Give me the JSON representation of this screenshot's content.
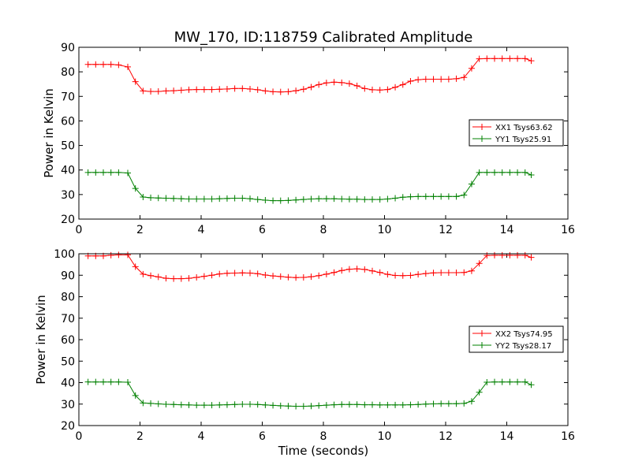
{
  "figure": {
    "title": "MW_170, ID:118759 Calibrated Amplitude"
  },
  "colors": {
    "XX": "#ff0000",
    "YY": "#008000"
  },
  "chart_data": [
    {
      "type": "line",
      "xlabel": "",
      "ylabel": "Power in Kelvin",
      "xlim": [
        0,
        16
      ],
      "ylim": [
        20,
        90
      ],
      "xticks": [
        "0",
        "2",
        "4",
        "6",
        "8",
        "10",
        "12",
        "14",
        "16"
      ],
      "yticks": [
        "20",
        "30",
        "40",
        "50",
        "60",
        "70",
        "80",
        "90"
      ],
      "grid": false,
      "legend_position": "right",
      "x": [
        0.3,
        0.55,
        0.8,
        1.05,
        1.3,
        1.6,
        1.85,
        2.1,
        2.35,
        2.6,
        2.85,
        3.1,
        3.35,
        3.6,
        3.85,
        4.1,
        4.35,
        4.6,
        4.85,
        5.1,
        5.35,
        5.6,
        5.85,
        6.1,
        6.35,
        6.6,
        6.85,
        7.1,
        7.35,
        7.6,
        7.85,
        8.1,
        8.35,
        8.6,
        8.85,
        9.1,
        9.35,
        9.6,
        9.85,
        10.1,
        10.35,
        10.6,
        10.85,
        11.1,
        11.35,
        11.6,
        11.85,
        12.1,
        12.35,
        12.6,
        12.85,
        13.1,
        13.35,
        13.6,
        13.85,
        14.1,
        14.35,
        14.6,
        14.8
      ],
      "series": [
        {
          "name": "XX1 Tsys63.62",
          "color": "#ff0000",
          "values": [
            83,
            83,
            83,
            83,
            82.8,
            82,
            76,
            72.2,
            72,
            72,
            72.2,
            72.3,
            72.5,
            72.7,
            72.8,
            72.8,
            72.8,
            72.9,
            73,
            73.2,
            73.2,
            73,
            72.7,
            72.2,
            71.9,
            71.8,
            71.9,
            72.3,
            72.9,
            73.8,
            74.8,
            75.5,
            75.8,
            75.6,
            75.2,
            74.3,
            73.2,
            72.7,
            72.6,
            72.8,
            73.7,
            74.8,
            76.2,
            76.8,
            77,
            77,
            77,
            77,
            77.2,
            77.7,
            81.4,
            85.3,
            85.4,
            85.4,
            85.4,
            85.4,
            85.4,
            85.4,
            84.5
          ]
        },
        {
          "name": "YY1 Tsys25.91",
          "color": "#008000",
          "values": [
            39,
            39,
            39,
            39,
            39,
            38.8,
            32.5,
            29,
            28.7,
            28.6,
            28.5,
            28.4,
            28.3,
            28.2,
            28.2,
            28.2,
            28.2,
            28.3,
            28.4,
            28.5,
            28.5,
            28.3,
            28,
            27.7,
            27.5,
            27.5,
            27.6,
            27.8,
            28,
            28.2,
            28.3,
            28.3,
            28.3,
            28.2,
            28.1,
            28.1,
            28,
            28,
            28,
            28.2,
            28.5,
            28.9,
            29.1,
            29.2,
            29.2,
            29.2,
            29.2,
            29.2,
            29.2,
            29.8,
            34.3,
            39,
            39,
            39,
            39,
            39,
            39,
            39,
            38
          ]
        }
      ]
    },
    {
      "type": "line",
      "xlabel": "Time (seconds)",
      "ylabel": "Power in Kelvin",
      "xlim": [
        0,
        16
      ],
      "ylim": [
        20,
        100
      ],
      "xticks": [
        "0",
        "2",
        "4",
        "6",
        "8",
        "10",
        "12",
        "14",
        "16"
      ],
      "yticks": [
        "20",
        "30",
        "40",
        "50",
        "60",
        "70",
        "80",
        "90",
        "100"
      ],
      "grid": false,
      "legend_position": "right",
      "x": [
        0.3,
        0.55,
        0.8,
        1.05,
        1.3,
        1.6,
        1.85,
        2.1,
        2.35,
        2.6,
        2.85,
        3.1,
        3.35,
        3.6,
        3.85,
        4.1,
        4.35,
        4.6,
        4.85,
        5.1,
        5.35,
        5.6,
        5.85,
        6.1,
        6.35,
        6.6,
        6.85,
        7.1,
        7.35,
        7.6,
        7.85,
        8.1,
        8.35,
        8.6,
        8.85,
        9.1,
        9.35,
        9.6,
        9.85,
        10.1,
        10.35,
        10.6,
        10.85,
        11.1,
        11.35,
        11.6,
        11.85,
        12.1,
        12.35,
        12.6,
        12.85,
        13.1,
        13.35,
        13.6,
        13.85,
        14.1,
        14.35,
        14.6,
        14.8
      ],
      "series": [
        {
          "name": "XX2 Tsys74.95",
          "color": "#ff0000",
          "values": [
            99,
            99,
            99,
            99.3,
            99.5,
            99.5,
            94,
            90.5,
            89.8,
            89.2,
            88.6,
            88.4,
            88.4,
            88.6,
            89,
            89.5,
            90,
            90.6,
            90.9,
            91,
            91.1,
            91,
            90.7,
            90.1,
            89.7,
            89.4,
            89.1,
            88.9,
            89,
            89.3,
            89.8,
            90.5,
            91.3,
            92.2,
            92.8,
            93,
            92.7,
            92,
            91.3,
            90.4,
            89.9,
            89.8,
            89.9,
            90.4,
            90.8,
            91.1,
            91.2,
            91.2,
            91.2,
            91.3,
            92,
            95.5,
            99.2,
            99.3,
            99.3,
            99.3,
            99.3,
            99.3,
            98.3
          ]
        },
        {
          "name": "YY2 Tsys28.17",
          "color": "#008000",
          "values": [
            40.3,
            40.3,
            40.3,
            40.3,
            40.3,
            40.2,
            34,
            30.5,
            30.3,
            30.1,
            29.9,
            29.8,
            29.7,
            29.6,
            29.5,
            29.5,
            29.5,
            29.6,
            29.7,
            29.8,
            29.9,
            29.9,
            29.8,
            29.6,
            29.4,
            29.2,
            29.1,
            29,
            29,
            29.1,
            29.3,
            29.5,
            29.7,
            29.8,
            29.8,
            29.8,
            29.7,
            29.7,
            29.6,
            29.6,
            29.6,
            29.6,
            29.7,
            29.8,
            30,
            30.1,
            30.2,
            30.2,
            30.2,
            30.3,
            31.3,
            35.5,
            40.2,
            40.3,
            40.3,
            40.3,
            40.3,
            40.3,
            39
          ]
        }
      ]
    }
  ]
}
